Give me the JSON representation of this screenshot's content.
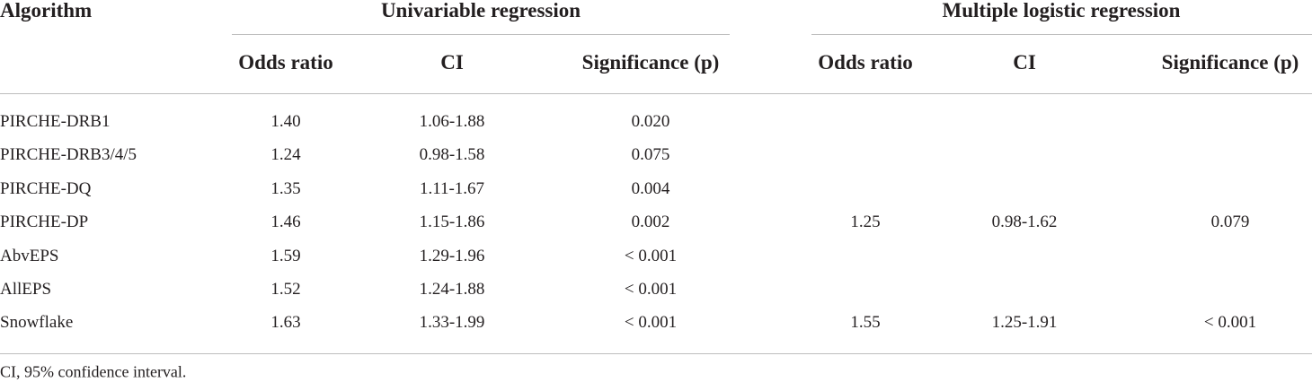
{
  "header": {
    "algorithm": "Algorithm",
    "groups": [
      "Univariable regression",
      "Multiple logistic regression"
    ],
    "columns": [
      "Odds ratio",
      "CI",
      "Significance (p)",
      "Odds ratio",
      "CI",
      "Significance (p)"
    ]
  },
  "table": {
    "rows": [
      [
        "PIRCHE-DRB1",
        "1.40",
        "1.06-1.88",
        "0.020",
        null,
        null,
        null
      ],
      [
        "PIRCHE-DRB3/4/5",
        "1.24",
        "0.98-1.58",
        "0.075",
        null,
        null,
        null
      ],
      [
        "PIRCHE-DQ",
        "1.35",
        "1.11-1.67",
        "0.004",
        null,
        null,
        null
      ],
      [
        "PIRCHE-DP",
        "1.46",
        "1.15-1.86",
        "0.002",
        "1.25",
        "0.98-1.62",
        "0.079"
      ],
      [
        "AbvEPS",
        "1.59",
        "1.29-1.96",
        "< 0.001",
        null,
        null,
        null
      ],
      [
        "AllEPS",
        "1.52",
        "1.24-1.88",
        "< 0.001",
        null,
        null,
        null
      ],
      [
        "Snowflake",
        "1.63",
        "1.33-1.99",
        "< 0.001",
        "1.55",
        "1.25-1.91",
        "< 0.001"
      ]
    ]
  },
  "footnote": "CI, 95% confidence interval."
}
